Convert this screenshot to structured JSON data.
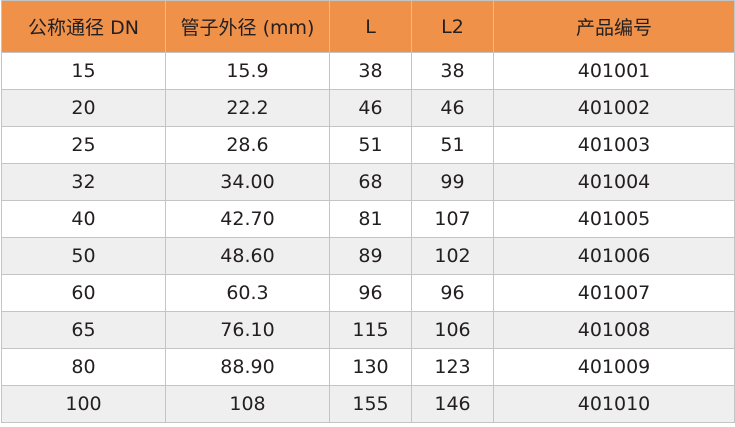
{
  "table": {
    "header_color": "#f0914a",
    "headers": [
      "公称通径 DN",
      "管子外径 (mm)",
      "L",
      "L2",
      "产品编号"
    ],
    "rows": [
      [
        "15",
        "15.9",
        "38",
        "38",
        "401001"
      ],
      [
        "20",
        "22.2",
        "46",
        "46",
        "401002"
      ],
      [
        "25",
        "28.6",
        "51",
        "51",
        "401003"
      ],
      [
        "32",
        "34.00",
        "68",
        "99",
        "401004"
      ],
      [
        "40",
        "42.70",
        "81",
        "107",
        "401005"
      ],
      [
        "50",
        "48.60",
        "89",
        "102",
        "401006"
      ],
      [
        "60",
        "60.3",
        "96",
        "96",
        "401007"
      ],
      [
        "65",
        "76.10",
        "115",
        "106",
        "401008"
      ],
      [
        "80",
        "88.90",
        "130",
        "123",
        "401009"
      ],
      [
        "100",
        "108",
        "155",
        "146",
        "401010"
      ]
    ]
  }
}
